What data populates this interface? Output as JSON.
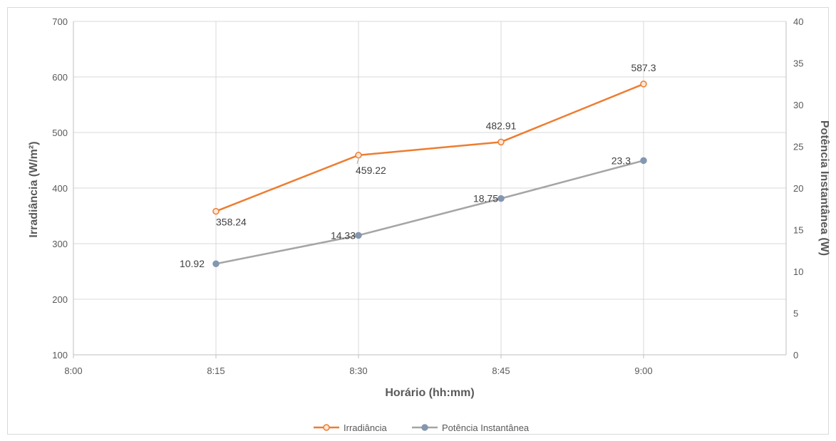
{
  "chart_data": {
    "type": "line",
    "x_label": "Horário (hh:mm)",
    "y_left_label": "Irradiância (W/m²)",
    "y_right_label": "Potência Instantânea (W)",
    "x_ticks": [
      "8:00",
      "8:15",
      "8:30",
      "8:45",
      "9:00"
    ],
    "x_range": [
      "8:00",
      "9:15"
    ],
    "y_left_range": [
      100,
      700
    ],
    "y_left_ticks": [
      100,
      200,
      300,
      400,
      500,
      600,
      700
    ],
    "y_right_range": [
      0,
      40
    ],
    "y_right_ticks": [
      0,
      5,
      10,
      15,
      20,
      25,
      30,
      35,
      40
    ],
    "grid": true,
    "legend_position": "bottom",
    "series": [
      {
        "name": "Irradiância",
        "axis": "left",
        "color": "#ED7D31",
        "x": [
          "8:15",
          "8:30",
          "8:45",
          "9:00"
        ],
        "values": [
          358.24,
          459.22,
          482.91,
          587.3
        ],
        "labels": [
          "358.24",
          "459.22",
          "482.91",
          "587.3"
        ]
      },
      {
        "name": "Potência Instantânea",
        "axis": "right",
        "color": "#A5A5A5",
        "marker_color": "#8497B0",
        "x": [
          "8:15",
          "8:30",
          "8:45",
          "9:00"
        ],
        "values": [
          10.92,
          14.33,
          18.75,
          23.3
        ],
        "labels": [
          "10.92",
          "14.33",
          "18.75",
          "23.3"
        ]
      }
    ]
  }
}
